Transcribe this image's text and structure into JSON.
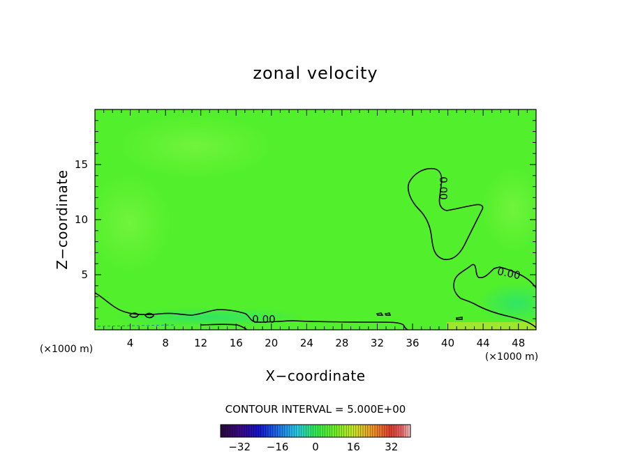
{
  "chart_data": {
    "type": "heatmap",
    "title": "zonal velocity",
    "xlabel": "X−coordinate",
    "ylabel": "Z−coordinate",
    "x_unit": "(×1000 m)",
    "xlim": [
      0,
      50
    ],
    "ylim": [
      0,
      20
    ],
    "x_ticks": [
      4,
      8,
      12,
      16,
      20,
      24,
      28,
      32,
      36,
      40,
      44,
      48
    ],
    "y_ticks": [
      5,
      10,
      15
    ],
    "contour_interval_text": "CONTOUR INTERVAL = 5.000E+00",
    "contour_levels": [
      0
    ],
    "contour_label": "0.00",
    "colorbar": {
      "range": [
        -40,
        40
      ],
      "ticks": [
        -32,
        -16,
        0,
        16,
        32
      ],
      "tick_labels": [
        "−32",
        "−16",
        "0",
        "16",
        "32"
      ]
    },
    "field_background_value": 2,
    "colors": {
      "field_main": "#52ef2c",
      "field_light": "#6cf23a",
      "field_negative": "#39e84e",
      "field_positive_strip": "#a6e62a"
    },
    "grid": false,
    "legend": "colorbar bottom"
  }
}
